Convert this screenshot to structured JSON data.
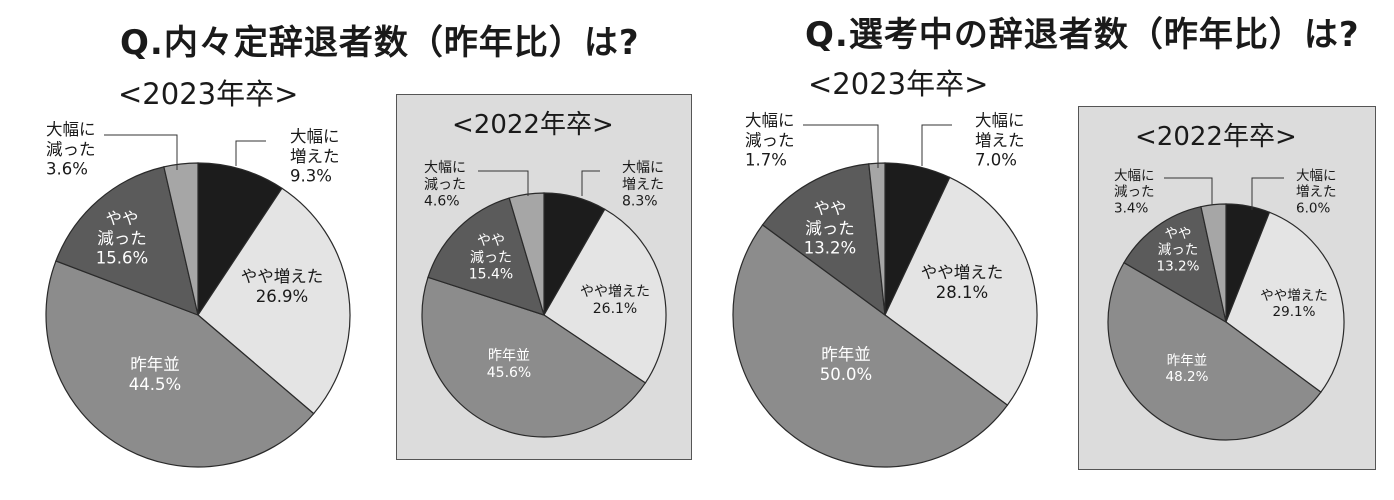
{
  "palette": {
    "大幅に増えた": "#1c1c1c",
    "やや増えた": "#e4e4e4",
    "昨年並": "#8c8c8c",
    "やや減った": "#5b5b5b",
    "大幅に減った": "#a6a6a6"
  },
  "headings": {
    "left": "Q.内々定辞退者数（昨年比）は?",
    "right": "Q.選考中の辞退者数（昨年比）は?"
  },
  "chart_data": [
    {
      "type": "pie",
      "title": "Q.内々定辞退者数（昨年比）は?",
      "subtitle": "<2023年卒>",
      "slices": [
        {
          "label": "大幅に増えた",
          "value": 9.3,
          "display_label": "大幅に\n増えた\n9.3%"
        },
        {
          "label": "やや増えた",
          "value": 26.9,
          "display_label": "やや増えた\n26.9%"
        },
        {
          "label": "昨年並",
          "value": 44.5,
          "display_label": "昨年並\n44.5%"
        },
        {
          "label": "やや減った",
          "value": 15.6,
          "display_label": "やや\n減った\n15.6%"
        },
        {
          "label": "大幅に減った",
          "value": 3.6,
          "display_label": "大幅に\n減った\n3.6%"
        }
      ]
    },
    {
      "type": "pie",
      "title": "Q.内々定辞退者数（昨年比）は?",
      "subtitle": "<2022年卒>",
      "slices": [
        {
          "label": "大幅に増えた",
          "value": 8.3,
          "display_label": "大幅に\n増えた\n8.3%"
        },
        {
          "label": "やや増えた",
          "value": 26.1,
          "display_label": "やや増えた\n26.1%"
        },
        {
          "label": "昨年並",
          "value": 45.6,
          "display_label": "昨年並\n45.6%"
        },
        {
          "label": "やや減った",
          "value": 15.4,
          "display_label": "やや\n減った\n15.4%"
        },
        {
          "label": "大幅に減った",
          "value": 4.6,
          "display_label": "大幅に\n減った\n4.6%"
        }
      ]
    },
    {
      "type": "pie",
      "title": "Q.選考中の辞退者数（昨年比）は?",
      "subtitle": "<2023年卒>",
      "slices": [
        {
          "label": "大幅に増えた",
          "value": 7.0,
          "display_label": "大幅に\n増えた\n7.0%"
        },
        {
          "label": "やや増えた",
          "value": 28.1,
          "display_label": "やや増えた\n28.1%"
        },
        {
          "label": "昨年並",
          "value": 50.0,
          "display_label": "昨年並\n50.0%"
        },
        {
          "label": "やや減った",
          "value": 13.2,
          "display_label": "やや\n減った\n13.2%"
        },
        {
          "label": "大幅に減った",
          "value": 1.7,
          "display_label": "大幅に\n減った\n1.7%"
        }
      ]
    },
    {
      "type": "pie",
      "title": "Q.選考中の辞退者数（昨年比）は?",
      "subtitle": "<2022年卒>",
      "slices": [
        {
          "label": "大幅に増えた",
          "value": 6.0,
          "display_label": "大幅に\n増えた\n6.0%"
        },
        {
          "label": "やや増えた",
          "value": 29.1,
          "display_label": "やや増えた\n29.1%"
        },
        {
          "label": "昨年並",
          "value": 48.2,
          "display_label": "昨年並\n48.2%"
        },
        {
          "label": "やや減った",
          "value": 13.2,
          "display_label": "やや\n減った\n13.2%"
        },
        {
          "label": "大幅に減った",
          "value": 3.4,
          "display_label": "大幅に\n減った\n3.4%"
        }
      ]
    }
  ]
}
